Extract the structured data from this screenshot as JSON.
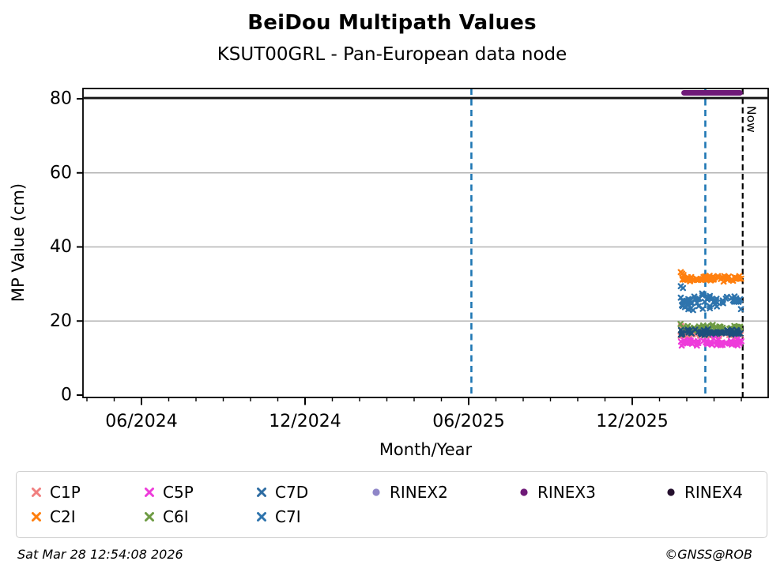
{
  "page": {
    "title": "BeiDou Multipath Values",
    "subtitle": "KSUT00GRL - Pan-European data node",
    "timestamp": "Sat Mar 28 12:54:08 2026",
    "credit": "©GNSS@ROB"
  },
  "chart_data": {
    "type": "scatter",
    "title": "BeiDou Multipath Values",
    "subtitle": "KSUT00GRL - Pan-European data node",
    "xlabel": "Month/Year",
    "ylabel": "MP Value (cm)",
    "ylim": [
      0,
      82.8
    ],
    "yticks": [
      0,
      20,
      40,
      60,
      80
    ],
    "grid_values": [
      20,
      40,
      60
    ],
    "x_axis_note": "x in months since 2024-01-01; axis spans late Mar 2024 to early May 2026",
    "xlim": [
      2.85,
      27.98
    ],
    "xticks": [
      {
        "m": 5,
        "label": "06/2024"
      },
      {
        "m": 11,
        "label": "12/2024"
      },
      {
        "m": 17,
        "label": "06/2025"
      },
      {
        "m": 23,
        "label": "12/2025"
      }
    ],
    "minor_tick_every_month": true,
    "vlines": [
      {
        "name": "analysis-window-start",
        "m": 17.1,
        "color": "#1f77b4",
        "width": 2.6,
        "dash": "8 5.5"
      },
      {
        "name": "analysis-window-end",
        "m": 25.68,
        "color": "#1f77b4",
        "width": 2.6,
        "dash": "8 5.5"
      },
      {
        "name": "now-line",
        "m": 27.05,
        "color": "#000000",
        "width": 2.2,
        "dash": "7.5 4.5",
        "label": "Now"
      }
    ],
    "now_label": "Now",
    "era_lines": [
      {
        "name": "RINEX4",
        "y": 80.2,
        "m_start": 2.85,
        "m_end": 27.98,
        "color": "#141414",
        "width": 2.8,
        "cap": "butt"
      },
      {
        "name": "RINEX3",
        "y": 81.6,
        "m_start": 24.9,
        "m_end": 26.95,
        "color": "#6f1a78",
        "width": 7,
        "cap": "round"
      }
    ],
    "seed": 1337,
    "series": [
      {
        "name": "C1P",
        "color": "#f08080",
        "marker": "x",
        "n": 42,
        "band": {
          "m_start": 24.75,
          "m_end": 27.0,
          "y_mean": 16.6,
          "y_jitter": 0.6,
          "y_min": 15.7,
          "y_max": 18.0
        },
        "extra_points": [
          [
            24.79,
            18.6
          ],
          [
            26.98,
            16.3
          ]
        ]
      },
      {
        "name": "C6I",
        "color": "#6e9b44",
        "marker": "x",
        "n": 55,
        "band": {
          "m_start": 24.75,
          "m_end": 27.0,
          "y_mean": 18.05,
          "y_jitter": 0.65,
          "y_min": 16.9,
          "y_max": 19.3
        },
        "extra_points": [
          [
            24.77,
            19.2
          ],
          [
            25.95,
            18.95
          ]
        ]
      },
      {
        "name": "C7D",
        "color": "#1d4f7c",
        "marker": "x",
        "n": 52,
        "band": {
          "m_start": 24.75,
          "m_end": 27.0,
          "y_mean": 17.0,
          "y_jitter": 0.6,
          "y_min": 15.9,
          "y_max": 18.2
        },
        "extra_points": []
      },
      {
        "name": "C5P",
        "color": "#ee3bda",
        "marker": "x",
        "n": 60,
        "band": {
          "m_start": 24.75,
          "m_end": 27.0,
          "y_mean": 14.2,
          "y_jitter": 0.7,
          "y_min": 12.7,
          "y_max": 15.7
        },
        "extra_points": []
      },
      {
        "name": "C2I",
        "color": "#ff7f0e",
        "marker": "x",
        "n": 62,
        "band": {
          "m_start": 24.75,
          "m_end": 27.0,
          "y_mean": 31.4,
          "y_jitter": 0.6,
          "y_min": 30.3,
          "y_max": 32.6
        },
        "extra_points": [
          [
            24.78,
            33.2
          ],
          [
            24.83,
            32.8
          ],
          [
            24.88,
            32.4
          ]
        ]
      },
      {
        "name": "C7I",
        "color": "#2e74ad",
        "marker": "x",
        "n": 62,
        "band": {
          "m_start": 24.75,
          "m_end": 27.0,
          "y_mean": 25.3,
          "y_jitter": 1.6,
          "y_min": 22.7,
          "y_max": 29.4
        },
        "extra_points": [
          [
            24.78,
            29.4
          ],
          [
            24.86,
            28.9
          ]
        ]
      }
    ],
    "legend": [
      {
        "label": "C1P",
        "color": "#f08080",
        "marker": "x"
      },
      {
        "label": "C5P",
        "color": "#ee3bda",
        "marker": "x"
      },
      {
        "label": "C7D",
        "color": "#2d6ca2",
        "marker": "x"
      },
      {
        "label": "RINEX2",
        "color": "#8f86c8",
        "marker": "circle"
      },
      {
        "label": "RINEX3",
        "color": "#6f1a78",
        "marker": "circle"
      },
      {
        "label": "RINEX4",
        "color": "#25102e",
        "marker": "circle"
      },
      {
        "label": "C2I",
        "color": "#ff7f0e",
        "marker": "x"
      },
      {
        "label": "C6I",
        "color": "#6e9b44",
        "marker": "x"
      },
      {
        "label": "C7I",
        "color": "#2e74ad",
        "marker": "x"
      }
    ],
    "legend_position": "bottom",
    "grid": "horizontal-only"
  }
}
